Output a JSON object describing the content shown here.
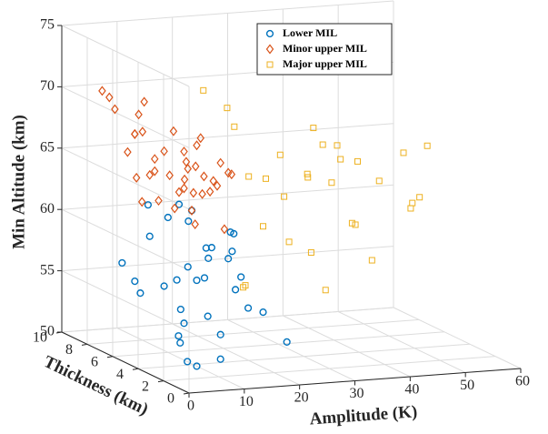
{
  "chart_data": {
    "type": "scatter3d",
    "xlabel": "Amplitude (K)",
    "ylabel": "Thickness (km)",
    "zlabel": "Min Altitude (km)",
    "xlim": [
      0,
      60
    ],
    "ylim": [
      0,
      10
    ],
    "zlim": [
      50,
      75
    ],
    "xticks": [
      0,
      10,
      20,
      30,
      40,
      50,
      60
    ],
    "yticks": [
      0,
      2,
      4,
      6,
      8,
      10
    ],
    "zticks": [
      50,
      55,
      60,
      65,
      70,
      75
    ],
    "grid": true,
    "legend_position": "northeast",
    "series": [
      {
        "name": "Lower MIL",
        "color": "#0072BD",
        "marker": "circle",
        "x": [
          2,
          5,
          8,
          10,
          12,
          4,
          6,
          9,
          11,
          13,
          15,
          7,
          3,
          10,
          14,
          18,
          16,
          8,
          12,
          6,
          9,
          11,
          13,
          5,
          20,
          17,
          7,
          10,
          14,
          4,
          12,
          8,
          15,
          6,
          19
        ],
        "y": [
          1,
          3,
          2,
          5,
          4,
          6,
          2,
          7,
          3,
          1,
          5,
          4,
          2,
          6,
          3,
          2,
          7,
          1,
          5,
          3,
          4,
          8,
          2,
          6,
          1,
          4,
          5,
          3,
          2,
          7,
          6,
          1,
          3,
          2,
          5
        ],
        "z": [
          52,
          53,
          55,
          54,
          57,
          56,
          58,
          59,
          60,
          56,
          58,
          57,
          53,
          61,
          59,
          55,
          60,
          52,
          62,
          54,
          58,
          61,
          57,
          55,
          53,
          59,
          56,
          60,
          58,
          57,
          62,
          54,
          61,
          51,
          60
        ]
      },
      {
        "name": "Minor upper MIL",
        "color": "#D95319",
        "marker": "diamond",
        "x": [
          2,
          3,
          4,
          5,
          6,
          7,
          8,
          9,
          10,
          11,
          12,
          3,
          5,
          7,
          9,
          11,
          13,
          4,
          6,
          8,
          10,
          12,
          14,
          2,
          6,
          9,
          3,
          5,
          8,
          11,
          4,
          7,
          10,
          13,
          6,
          9,
          5,
          8,
          12,
          15
        ],
        "y": [
          2,
          4,
          6,
          8,
          3,
          5,
          7,
          2,
          4,
          6,
          3,
          5,
          1,
          7,
          4,
          2,
          6,
          8,
          3,
          5,
          1,
          6,
          3,
          5,
          2,
          7,
          4,
          9,
          3,
          5,
          6,
          2,
          8,
          4,
          5,
          3,
          7,
          1,
          5,
          6
        ],
        "z": [
          64,
          66,
          68,
          69,
          65,
          67,
          70,
          66,
          64,
          68,
          65,
          63,
          67,
          69,
          66,
          62,
          64,
          70,
          68,
          65,
          67,
          63,
          66,
          65,
          69,
          64,
          67,
          70,
          62,
          66,
          68,
          65,
          67,
          64,
          63,
          69,
          66,
          68,
          62,
          65
        ]
      },
      {
        "name": "Major upper MIL",
        "color": "#EDB120",
        "marker": "square",
        "x": [
          18,
          20,
          22,
          25,
          28,
          30,
          32,
          35,
          38,
          40,
          42,
          45,
          48,
          50,
          23,
          27,
          33,
          37,
          21,
          26,
          31,
          36,
          44,
          29,
          34,
          24,
          39,
          47,
          19,
          41
        ],
        "y": [
          2,
          4,
          6,
          3,
          5,
          7,
          2,
          4,
          6,
          3,
          5,
          2,
          4,
          3,
          7,
          1,
          5,
          3,
          8,
          2,
          6,
          4,
          1,
          3,
          5,
          6,
          2,
          3,
          4,
          5
        ],
        "z": [
          62,
          65,
          68,
          60,
          66,
          63,
          67,
          64,
          66,
          58,
          65,
          63,
          66,
          67,
          69,
          57,
          64,
          61,
          70,
          66,
          62,
          67,
          64,
          59,
          68,
          55,
          65,
          62,
          56,
          60
        ]
      }
    ]
  }
}
